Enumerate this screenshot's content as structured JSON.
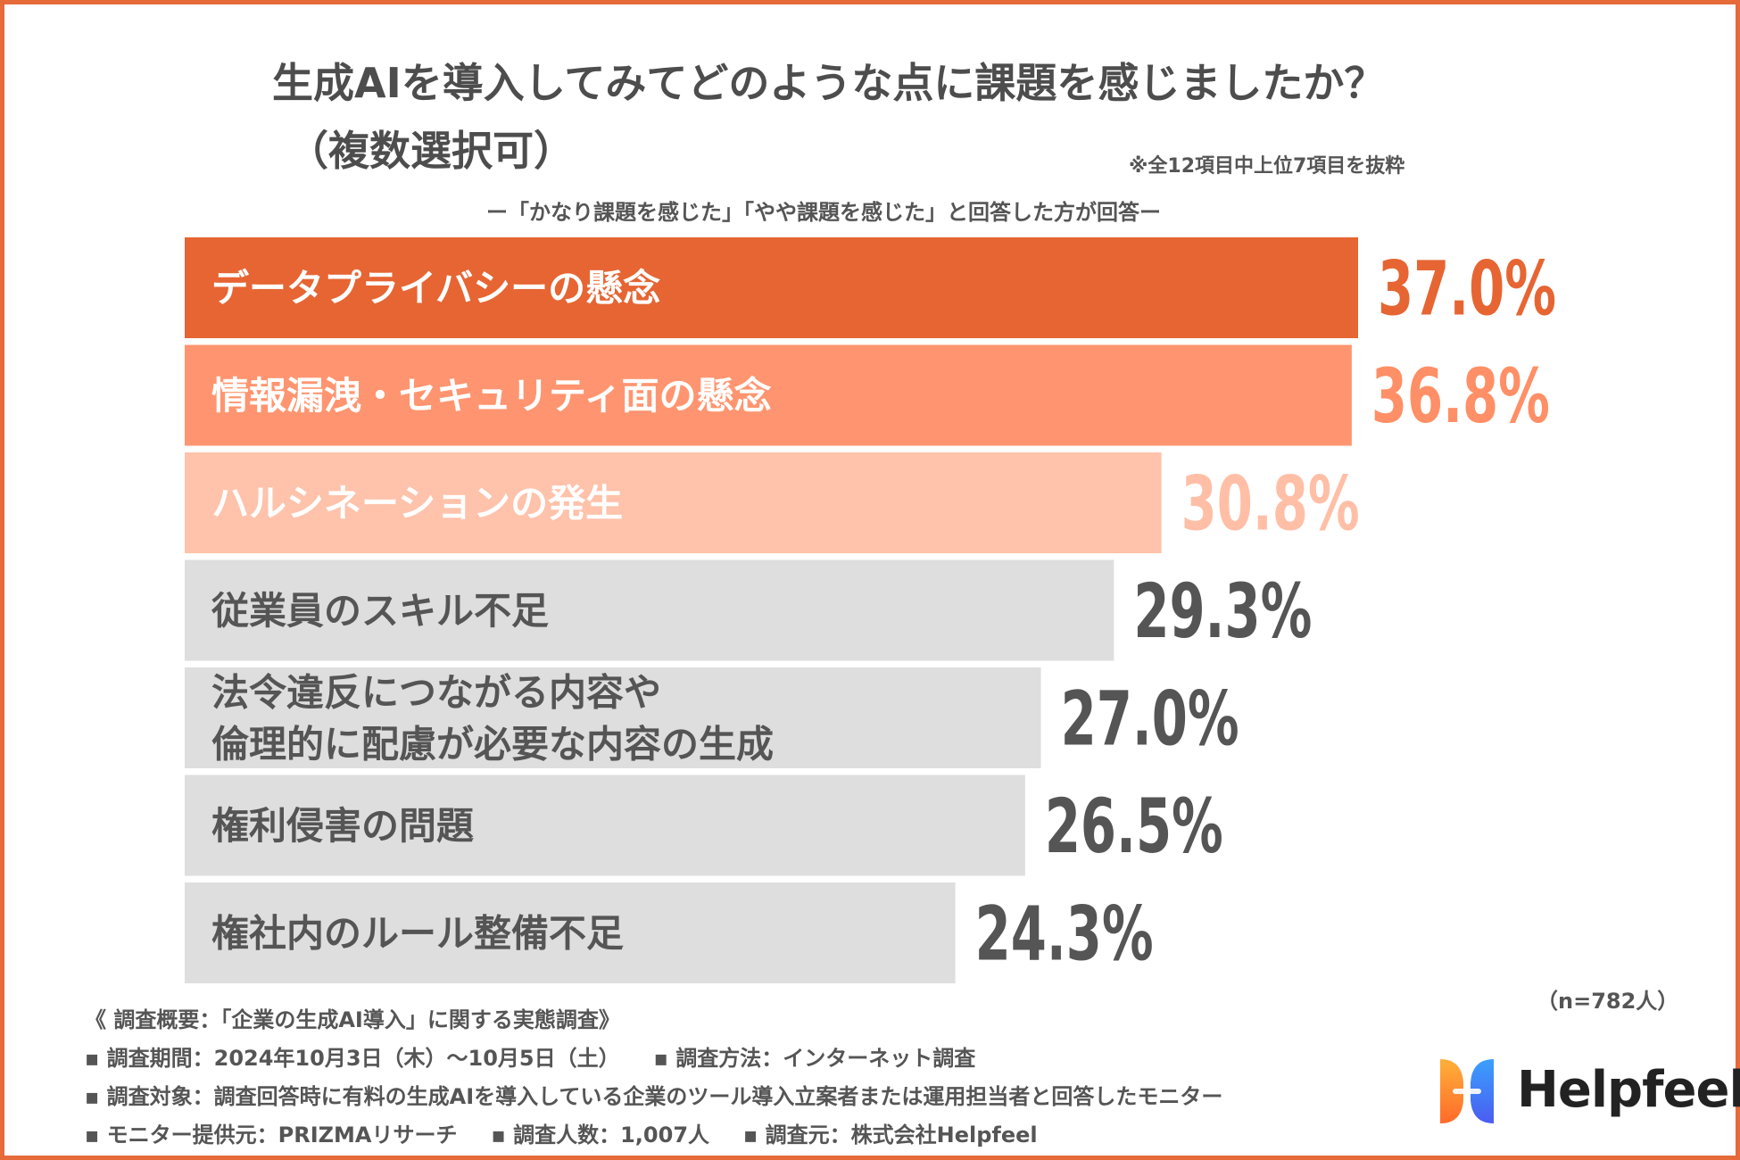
{
  "title_line1": "生成AIを導入してみてどのような点に課題を感じましたか？",
  "title_line2": "（複数選択可）",
  "note": "※全12項目中上位7項目を抜粋",
  "subtitle": "ー「かなり課題を感じた」「やや課題を感じた」と回答した方が回答ー",
  "sample_size": "（n=782人）",
  "chart_data": {
    "type": "bar",
    "orientation": "horizontal",
    "categories": [
      [
        "データプライバシーの懸念"
      ],
      [
        "情報漏洩・セキュリティ面の懸念"
      ],
      [
        "ハルシネーションの発生"
      ],
      [
        "従業員のスキル不足"
      ],
      [
        "法令違反につながる内容や",
        "倫理的に配慮が必要な内容の生成"
      ],
      [
        "権利侵害の問題"
      ],
      [
        "権社内のルール整備不足"
      ]
    ],
    "values": [
      37.0,
      36.8,
      30.8,
      29.3,
      27.0,
      26.5,
      24.3
    ],
    "value_labels": [
      "37.0%",
      "36.8%",
      "30.8%",
      "29.3%",
      "27.0%",
      "26.5%",
      "24.3%"
    ],
    "bar_colors": [
      "#e66533",
      "#ff9570",
      "#ffc2aa",
      "#dedede",
      "#dedede",
      "#dedede",
      "#dedede"
    ],
    "label_colors": [
      "#ffffff",
      "#ffffff",
      "#ffffff",
      "#555555",
      "#555555",
      "#555555",
      "#555555"
    ],
    "value_colors": [
      "#e66533",
      "#ff8f66",
      "#ffbfa6",
      "#555555",
      "#555555",
      "#555555",
      "#555555"
    ],
    "xlim": [
      0,
      37.0
    ]
  },
  "footer": {
    "line1": "《 調査概要：「企業の生成AI導入」に関する実態調査》",
    "line2_a": "▪ 調査期間：2024年10月3日（木）〜10月5日（土）",
    "line2_b": "▪ 調査方法：インターネット調査",
    "line3": "▪ 調査対象：調査回答時に有料の生成AIを導入している企業のツール導入立案者または運用担当者と回答したモニター",
    "line4_a": "▪ モニター提供元：PRIZMAリサーチ",
    "line4_b": "▪ 調査人数：1,007人",
    "line4_c": "▪ 調査元：株式会社Helpfeel"
  },
  "logo": {
    "text": "Helpfeel",
    "icon": "helpfeel-logo-icon"
  }
}
